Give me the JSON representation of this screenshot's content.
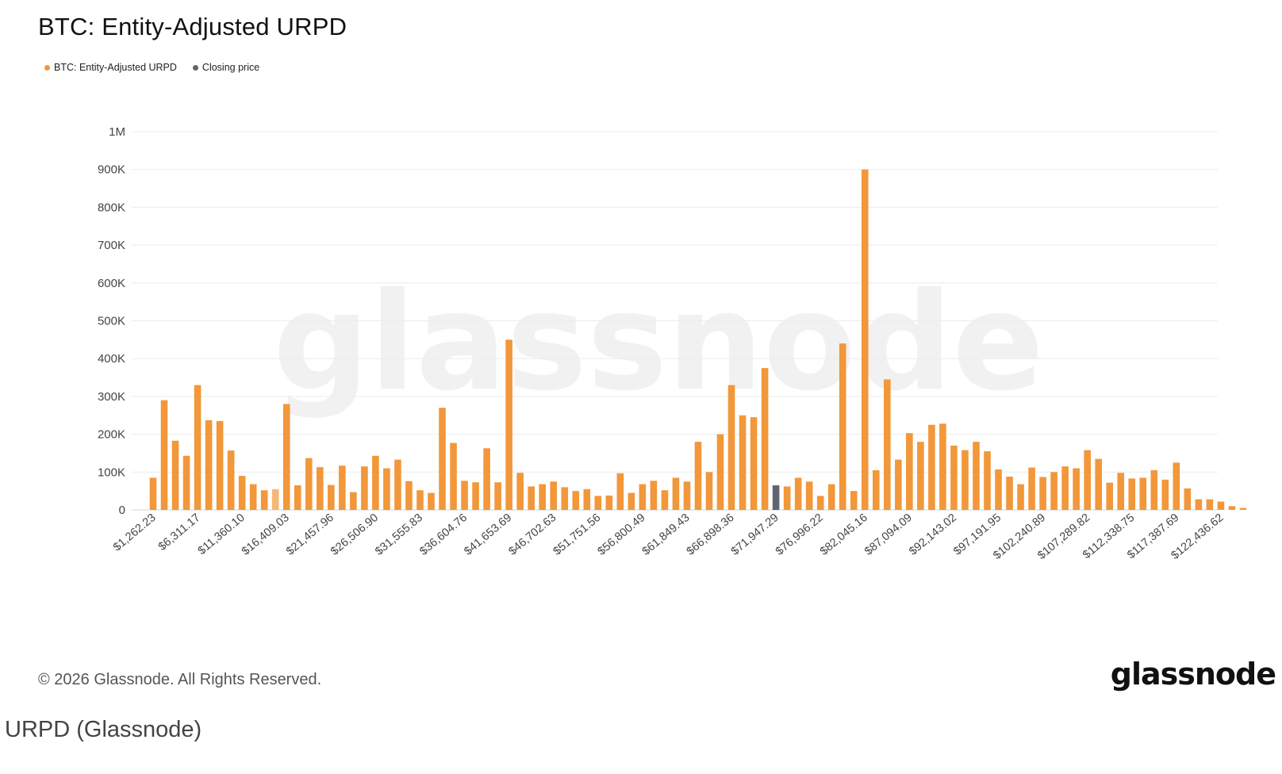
{
  "chart_data": {
    "type": "bar",
    "title": "BTC: Entity-Adjusted URPD",
    "legend": [
      {
        "label": "BTC: Entity-Adjusted URPD",
        "color": "#f2973a"
      },
      {
        "label": "Closing price",
        "color": "#5e6470"
      }
    ],
    "y_ticks": [
      "0",
      "100K",
      "200K",
      "300K",
      "400K",
      "500K",
      "600K",
      "700K",
      "800K",
      "900K",
      "1M"
    ],
    "ylim": [
      0,
      1000000
    ],
    "x_tick_labels": [
      "$1,262.23",
      "$6,311.17",
      "$11,360.10",
      "$16,409.03",
      "$21,457.96",
      "$26,506.90",
      "$31,555.83",
      "$36,604.76",
      "$41,653.69",
      "$46,702.63",
      "$51,751.56",
      "$56,800.49",
      "$61,849.43",
      "$66,898.36",
      "$71,947.29",
      "$76,996.22",
      "$82,045.16",
      "$87,094.09",
      "$92,143.02",
      "$97,191.95",
      "$102,240.89",
      "$107,289.82",
      "$112,338.75",
      "$117,387.69",
      "$122,436.62"
    ],
    "bin_width": 1262.23,
    "values": [
      85000,
      290000,
      183000,
      143000,
      330000,
      237000,
      235000,
      157000,
      90000,
      68000,
      52000,
      55000,
      280000,
      65000,
      137000,
      113000,
      66000,
      117000,
      47000,
      115000,
      143000,
      110000,
      133000,
      76000,
      52000,
      45000,
      270000,
      177000,
      77000,
      73000,
      163000,
      73000,
      450000,
      98000,
      62000,
      68000,
      75000,
      60000,
      50000,
      55000,
      37000,
      38000,
      97000,
      45000,
      68000,
      77000,
      52000,
      85000,
      75000,
      180000,
      100000,
      200000,
      330000,
      250000,
      245000,
      375000,
      65000,
      62000,
      85000,
      75000,
      37000,
      68000,
      440000,
      50000,
      900000,
      105000,
      345000,
      133000,
      203000,
      180000,
      225000,
      228000,
      170000,
      158000,
      180000,
      155000,
      107000,
      88000,
      68000,
      112000,
      87000,
      100000,
      115000,
      110000,
      158000,
      135000,
      72000,
      98000,
      83000,
      85000,
      105000,
      80000,
      125000,
      57000,
      28000,
      28000,
      22000,
      10000,
      5000
    ],
    "highlight": [
      {
        "index": 11,
        "role": "current-bin",
        "color": "#f6b777"
      },
      {
        "index": 56,
        "role": "Closing price",
        "color": "#5e6470"
      }
    ],
    "bar_color": "#f2973a",
    "grid": true,
    "watermark": "glassnode"
  },
  "footer": {
    "copyright": "© 2026 Glassnode. All Rights Reserved.",
    "brand": "glassnode"
  },
  "caption": "URPD (Glassnode)"
}
